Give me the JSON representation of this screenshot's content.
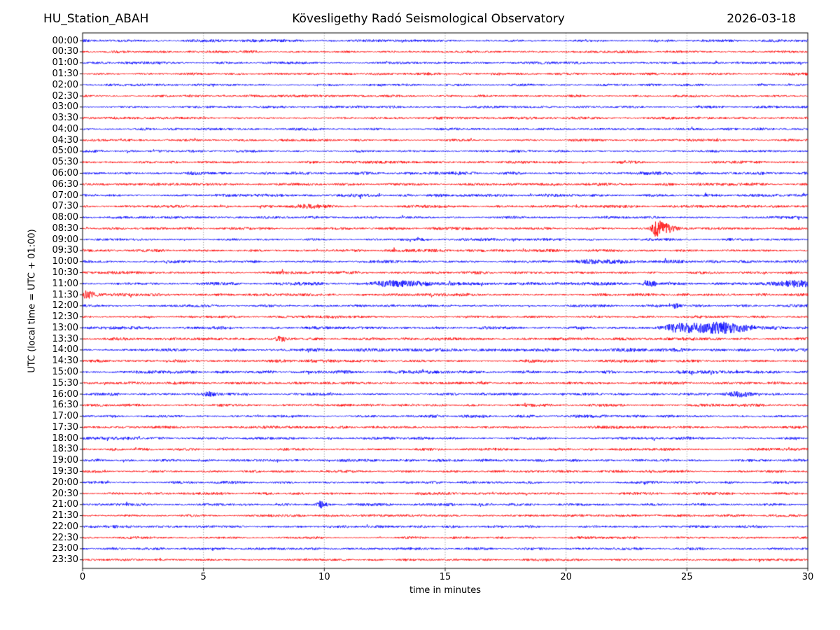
{
  "header": {
    "station": "HU_Station_ABAH",
    "observatory": "Kövesligethy Radó Seismological Observatory",
    "date": "2026-03-18"
  },
  "chart_data": {
    "type": "line",
    "subtype": "helicorder-seismogram",
    "title": "Kövesligethy Radó Seismological Observatory",
    "station": "HU_Station_ABAH",
    "date": "2026-03-18",
    "xlabel": "time in minutes",
    "ylabel": "UTC (local time = UTC + 01:00)",
    "x_range": [
      0,
      30
    ],
    "x_ticks": [
      0,
      5,
      10,
      15,
      20,
      25,
      30
    ],
    "minutes_per_row": 30,
    "grid": {
      "vertical_dotted_minutes": [
        5,
        10,
        15,
        20,
        25
      ]
    },
    "colors": {
      "even_rows": "#0000ff",
      "odd_rows": "#ff0000",
      "axis": "#000000",
      "grid": "#444444"
    },
    "rows": [
      {
        "time": "00:00",
        "color": "blue",
        "noise": 1.0
      },
      {
        "time": "00:30",
        "color": "red",
        "noise": 1.0
      },
      {
        "time": "01:00",
        "color": "blue",
        "noise": 0.95
      },
      {
        "time": "01:30",
        "color": "red",
        "noise": 1.0
      },
      {
        "time": "02:00",
        "color": "blue",
        "noise": 0.9
      },
      {
        "time": "02:30",
        "color": "red",
        "noise": 0.95
      },
      {
        "time": "03:00",
        "color": "blue",
        "noise": 0.95
      },
      {
        "time": "03:30",
        "color": "red",
        "noise": 1.0
      },
      {
        "time": "04:00",
        "color": "blue",
        "noise": 1.0
      },
      {
        "time": "04:30",
        "color": "red",
        "noise": 0.95
      },
      {
        "time": "05:00",
        "color": "blue",
        "noise": 0.9
      },
      {
        "time": "05:30",
        "color": "red",
        "noise": 1.0
      },
      {
        "time": "06:00",
        "color": "blue",
        "noise": 1.3
      },
      {
        "time": "06:30",
        "color": "red",
        "noise": 1.05
      },
      {
        "time": "07:00",
        "color": "blue",
        "noise": 1.15
      },
      {
        "time": "07:30",
        "color": "red",
        "noise": 1.05
      },
      {
        "time": "08:00",
        "color": "blue",
        "noise": 1.05
      },
      {
        "time": "08:30",
        "color": "red",
        "noise": 1.0
      },
      {
        "time": "09:00",
        "color": "blue",
        "noise": 1.0
      },
      {
        "time": "09:30",
        "color": "red",
        "noise": 1.05
      },
      {
        "time": "10:00",
        "color": "blue",
        "noise": 1.15
      },
      {
        "time": "10:30",
        "color": "red",
        "noise": 1.1
      },
      {
        "time": "11:00",
        "color": "blue",
        "noise": 1.2
      },
      {
        "time": "11:30",
        "color": "red",
        "noise": 1.1
      },
      {
        "time": "12:00",
        "color": "blue",
        "noise": 1.1
      },
      {
        "time": "12:30",
        "color": "red",
        "noise": 1.1
      },
      {
        "time": "13:00",
        "color": "blue",
        "noise": 1.15
      },
      {
        "time": "13:30",
        "color": "red",
        "noise": 1.1
      },
      {
        "time": "14:00",
        "color": "blue",
        "noise": 1.35
      },
      {
        "time": "14:30",
        "color": "red",
        "noise": 1.15
      },
      {
        "time": "15:00",
        "color": "blue",
        "noise": 1.3
      },
      {
        "time": "15:30",
        "color": "red",
        "noise": 1.1
      },
      {
        "time": "16:00",
        "color": "blue",
        "noise": 1.1
      },
      {
        "time": "16:30",
        "color": "red",
        "noise": 1.05
      },
      {
        "time": "17:00",
        "color": "blue",
        "noise": 1.1
      },
      {
        "time": "17:30",
        "color": "red",
        "noise": 1.05
      },
      {
        "time": "18:00",
        "color": "blue",
        "noise": 1.1
      },
      {
        "time": "18:30",
        "color": "red",
        "noise": 1.05
      },
      {
        "time": "19:00",
        "color": "blue",
        "noise": 1.05
      },
      {
        "time": "19:30",
        "color": "red",
        "noise": 1.05
      },
      {
        "time": "20:00",
        "color": "blue",
        "noise": 1.05
      },
      {
        "time": "20:30",
        "color": "red",
        "noise": 1.0
      },
      {
        "time": "21:00",
        "color": "blue",
        "noise": 1.0
      },
      {
        "time": "21:30",
        "color": "red",
        "noise": 1.0
      },
      {
        "time": "22:00",
        "color": "blue",
        "noise": 1.0
      },
      {
        "time": "22:30",
        "color": "red",
        "noise": 0.95
      },
      {
        "time": "23:00",
        "color": "blue",
        "noise": 1.0
      },
      {
        "time": "23:30",
        "color": "red",
        "noise": 0.95
      }
    ],
    "events": [
      {
        "row": "07:30",
        "minute": 9.4,
        "amp": 2.2,
        "rise": 0.3,
        "decay": 0.5,
        "note": "minor noise burst"
      },
      {
        "row": "08:30",
        "minute": 23.7,
        "amp": 11.0,
        "rise": 0.12,
        "decay": 0.5,
        "note": "strong impulsive event"
      },
      {
        "row": "10:00",
        "minute": 21.4,
        "amp": 2.0,
        "rise": 0.8,
        "decay": 0.9,
        "note": "slightly elevated noise"
      },
      {
        "row": "11:00",
        "minute": 12.9,
        "amp": 3.2,
        "rise": 0.8,
        "decay": 1.0,
        "note": "emergent noise burst"
      },
      {
        "row": "11:00",
        "minute": 23.35,
        "amp": 4.5,
        "rise": 0.12,
        "decay": 0.3,
        "note": "short burst"
      },
      {
        "row": "11:00",
        "minute": 29.3,
        "amp": 3.2,
        "rise": 0.7,
        "decay": 1.2,
        "note": "elevated noise to end of row"
      },
      {
        "row": "11:30",
        "minute": 0.12,
        "amp": 5.0,
        "rise": 0.06,
        "decay": 0.35,
        "note": "spike at row start"
      },
      {
        "row": "12:00",
        "minute": 24.5,
        "amp": 3.0,
        "rise": 0.1,
        "decay": 0.18,
        "note": "small blip"
      },
      {
        "row": "13:00",
        "minute": 24.8,
        "amp": 7.0,
        "rise": 0.4,
        "decay": 1.3,
        "note": "extended event with long coda"
      },
      {
        "row": "13:00",
        "minute": 26.6,
        "amp": 3.5,
        "rise": 0.5,
        "decay": 0.9,
        "note": "coda lobe"
      },
      {
        "row": "13:30",
        "minute": 8.15,
        "amp": 3.0,
        "rise": 0.12,
        "decay": 0.2,
        "note": "small blip"
      },
      {
        "row": "16:00",
        "minute": 5.2,
        "amp": 2.2,
        "rise": 0.15,
        "decay": 0.25,
        "note": "small blip"
      },
      {
        "row": "16:00",
        "minute": 27.0,
        "amp": 3.2,
        "rise": 0.3,
        "decay": 0.5,
        "note": "moderate burst"
      },
      {
        "row": "21:00",
        "minute": 9.8,
        "amp": 5.5,
        "rise": 0.07,
        "decay": 0.2,
        "note": "sharp spike"
      }
    ]
  }
}
